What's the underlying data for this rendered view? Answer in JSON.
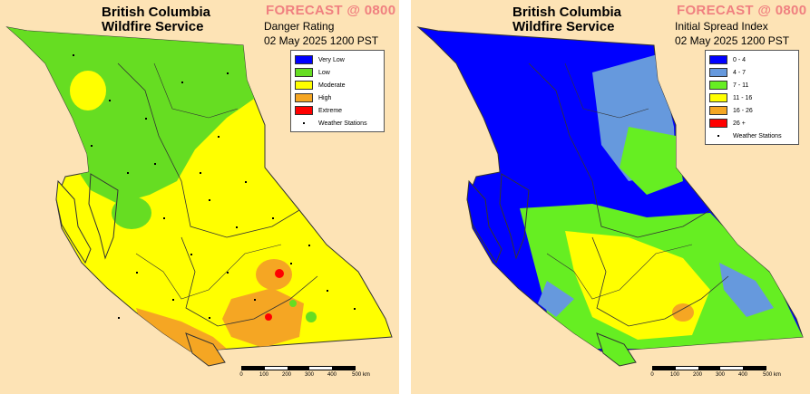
{
  "panels": [
    {
      "org_name": "British Columbia\nWildfire Service",
      "forecast_label": "FORECAST @ 0800",
      "product": "Danger Rating",
      "timestamp": "02 May 2025 1200 PST",
      "legend": [
        {
          "label": "Very Low",
          "color": "#0000ff"
        },
        {
          "label": "Low",
          "color": "#66dd22"
        },
        {
          "label": "Moderate",
          "color": "#ffff00"
        },
        {
          "label": "High",
          "color": "#f5a623"
        },
        {
          "label": "Extreme",
          "color": "#ff0000"
        }
      ],
      "stations_label": "Weather Stations",
      "scale_ticks": [
        "0",
        "100",
        "200",
        "300",
        "400",
        "500 km"
      ]
    },
    {
      "org_name": "British Columbia\nWildfire Service",
      "forecast_label": "FORECAST @ 0800",
      "product": "Initial Spread Index",
      "timestamp": "02 May 2025 1200 PST",
      "legend": [
        {
          "label": "0 - 4",
          "color": "#0000ff"
        },
        {
          "label": "4 - 7",
          "color": "#6699dd"
        },
        {
          "label": "7 - 11",
          "color": "#66ee22"
        },
        {
          "label": "11 - 16",
          "color": "#ffff00"
        },
        {
          "label": "16 - 26",
          "color": "#f5a623"
        },
        {
          "label": "26 +",
          "color": "#ff0000"
        }
      ],
      "stations_label": "Weather Stations",
      "scale_ticks": [
        "0",
        "100",
        "200",
        "300",
        "400",
        "500 km"
      ]
    }
  ],
  "colors": {
    "background": "#fde3b5",
    "title_accent": "#f08080"
  }
}
